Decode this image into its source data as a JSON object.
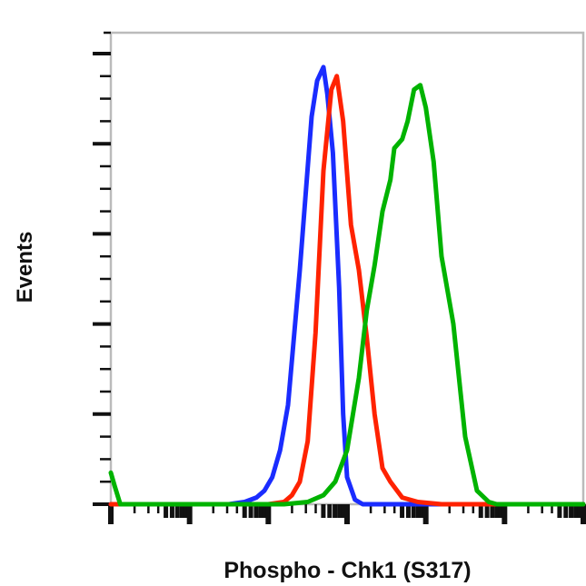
{
  "chart_data": {
    "type": "line",
    "title": "",
    "xlabel": "Phospho - Chk1 (S317)",
    "ylabel": "Events",
    "x_scale": "log",
    "x_decades": 6,
    "xlim": [
      0,
      6
    ],
    "ylim": [
      0,
      100
    ],
    "grid": false,
    "legend": "none",
    "tick_labels_shown": false,
    "series": [
      {
        "name": "blue",
        "color": "#1a2cff",
        "x": [
          0,
          1.5,
          1.7,
          1.85,
          1.95,
          2.05,
          2.15,
          2.25,
          2.4,
          2.55,
          2.62,
          2.7,
          2.75,
          2.82,
          2.9,
          2.95,
          3.0,
          3.1,
          3.2,
          3.4,
          6
        ],
        "y": [
          0,
          0,
          0.5,
          1.5,
          3,
          6,
          12,
          22,
          52,
          86,
          94,
          97,
          91,
          78,
          48,
          20,
          6,
          1,
          0,
          0,
          0
        ]
      },
      {
        "name": "red",
        "color": "#ff2200",
        "x": [
          0,
          2.0,
          2.2,
          2.3,
          2.4,
          2.5,
          2.6,
          2.7,
          2.8,
          2.87,
          2.95,
          3.05,
          3.15,
          3.25,
          3.35,
          3.45,
          3.55,
          3.7,
          3.9,
          4.2,
          6
        ],
        "y": [
          0,
          0,
          0.5,
          2,
          5,
          14,
          38,
          74,
          92,
          95,
          85,
          62,
          52,
          37,
          20,
          8,
          5,
          1.5,
          0.5,
          0,
          0
        ]
      },
      {
        "name": "green",
        "color": "#00b300",
        "x": [
          0,
          0.05,
          0.12,
          2.2,
          2.5,
          2.7,
          2.85,
          3.0,
          3.15,
          3.25,
          3.35,
          3.45,
          3.55,
          3.6,
          3.7,
          3.77,
          3.85,
          3.93,
          4.0,
          4.1,
          4.2,
          4.35,
          4.5,
          4.65,
          4.8,
          4.9,
          5.1,
          6
        ],
        "y": [
          7,
          4,
          0,
          0,
          0.5,
          2,
          5,
          12,
          28,
          43,
          53,
          65,
          72,
          79,
          81,
          85,
          92,
          93,
          88,
          76,
          55,
          40,
          15,
          3,
          0.5,
          0,
          0,
          0
        ]
      }
    ]
  }
}
